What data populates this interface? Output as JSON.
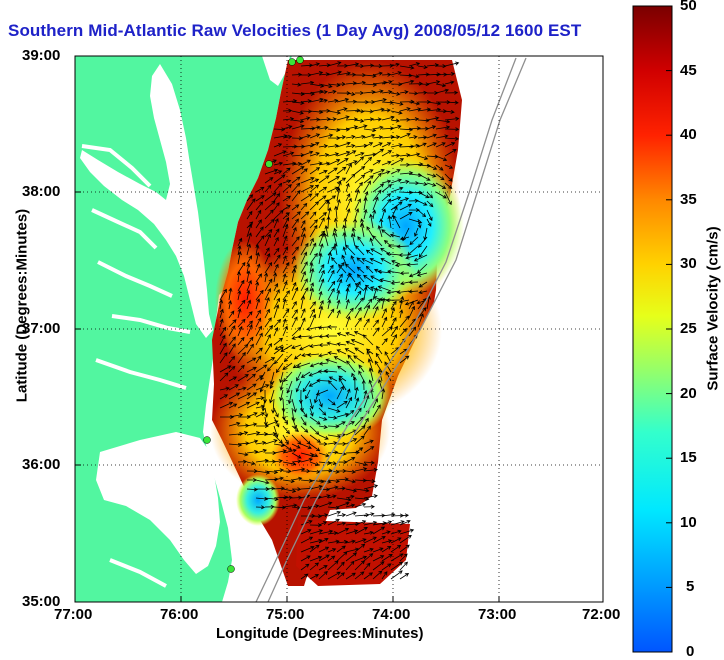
{
  "title": "Southern Mid-Atlantic Raw Velocities (1 Day Avg) 2008/05/12 1600 EST",
  "map": {
    "xlabel": "Longitude (Degrees:Minutes)",
    "ylabel": "Latitude (Degrees:Minutes)",
    "x_ticks": [
      "77:00",
      "76:00",
      "75:00",
      "74:00",
      "73:00",
      "72:00"
    ],
    "y_ticks": [
      "39:00",
      "38:00",
      "37:00",
      "36:00",
      "35:00"
    ],
    "lon_range": [
      -77,
      -72
    ],
    "lat_range": [
      35,
      39
    ],
    "land_color": "#52f6a0",
    "water_color": "#ffffff",
    "station_color": "#39e639"
  },
  "colorbar": {
    "label": "Surface Velocity (cm/s)",
    "ticks": [
      "50",
      "45",
      "40",
      "35",
      "30",
      "25",
      "20",
      "15",
      "10",
      "5",
      "0"
    ],
    "min": 0,
    "max": 50,
    "units": "cm/s"
  }
}
